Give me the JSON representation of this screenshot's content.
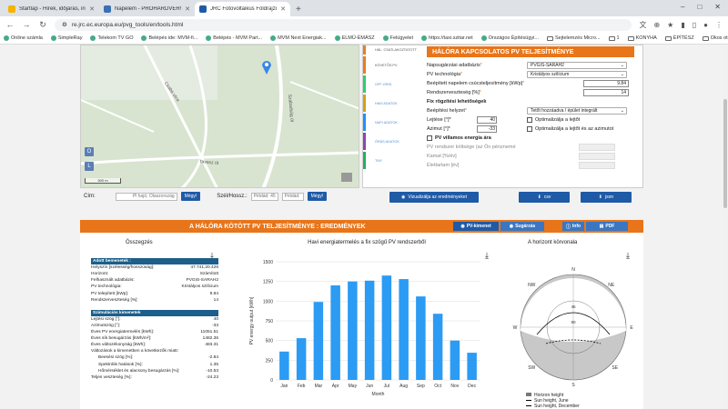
{
  "browser": {
    "tabs": [
      {
        "title": "Startlap - Hírek, időjárás, infor...",
        "color": "#f4b400",
        "active": false
      },
      {
        "title": "Napelem - PROHARDVER! Hozz...",
        "color": "#3b6fb6",
        "active": false
      },
      {
        "title": "JRC Fotovoltaikus Földrajzi Infor...",
        "color": "#1f5aa6",
        "active": true
      }
    ],
    "url": "re.jrc.ec.europa.eu/pvg_tools/en/tools.html",
    "bookmarks": [
      "Online számla",
      "SimpleRay",
      "Telekom TV GO",
      "Belépés ide: MVM-fi...",
      "Belépés - MVM Part...",
      "MVM Next Energiak...",
      "ELMŰ-ÉMÁSZ",
      "Felügyelet",
      "https://taxi.szitar.net",
      "Országos Építésügyi...",
      "Sejtelemzés Micro...",
      "1",
      "KONYHA",
      "ÉPÍTÉSZ",
      "Okos otthon"
    ]
  },
  "map": {
    "street_labels": [
      "Csaba utca",
      "Szabadság út",
      "Tó köz",
      "Tavasz út"
    ],
    "scale": "500 m",
    "leaflet": "LHC",
    "btn_o": "O",
    "btn_l": "L",
    "cim_label": "Cím:",
    "cim_placeholder": "Pl hajó, Ölaszország",
    "go": "Mégy!",
    "szel_label": "Szél/Hossz.:",
    "lat_placeholder": "Példád: 45",
    "lon_placeholder": "Példád: 8",
    "go2": "Mégy!"
  },
  "sidetabs": [
    "HÁL. CSATLAKOZTATOTT",
    "KÖVETŐS PV",
    "OFF-GRID",
    "HAVI ADATOK",
    "NAPI ADATOK",
    "ÓRÁS ADATOK",
    "TMY"
  ],
  "form": {
    "title": "HÁLÓRA KAPCSOLATOS PV TELJESÍTMÉNYE",
    "db_label": "Napsugárzási adatbázis",
    "db_value": "PVGIS-SARAH2",
    "tech_label": "PV technológia",
    "tech_value": "Kristályos szilícium",
    "peak_label": "Beépített napelem csúcsteljesítmény [kWp]",
    "peak_value": "9.84",
    "loss_label": "Rendszerveszteség [%]",
    "loss_value": "14",
    "fixed_title": "Fix rögzítési lehetőségek",
    "mount_label": "Beépítési helyzet",
    "mount_value": "Tetőt hozzáadva / épület integrált",
    "slope_label": "Lejtése [°]",
    "slope_value": "40",
    "opt_slope": "Optimalizálja a lejtőt",
    "azimuth_label": "Azimut [°]",
    "azimuth_value": "-33",
    "opt_both": "Optimalizálja a lejtőt és az azimutot",
    "price_label": "PV villamos energia ára",
    "cost_label": "PV rendszer költsége (az Ön pénznemé",
    "interest_label": "Kamat [%/év]",
    "life_label": "Élettartam [év]",
    "visualize": "Vizualizálja az eredményeket",
    "csv": "csv",
    "json": "json"
  },
  "results": {
    "title": "A HÁLÓRA KÖTÖTT PV TELJESÍTMÉNYE : EREDMÉNYEK",
    "btn_pv": "PV-kimenet",
    "btn_sun": "Sugárzás",
    "btn_info": "Info",
    "btn_pdf": "PDF",
    "summary_title": "Összegzés",
    "monthly_title": "Havi energiatermelés a fix szögű PV rendszerből",
    "horizon_title": "A horizont körvonala",
    "summary_rows": [
      {
        "k": "Adott bemenetek :",
        "v": "",
        "t": "hd"
      },
      {
        "k": "Helyszín [szélesség/hosszúság]:",
        "v": "47.741,20.426",
        "t": ""
      },
      {
        "k": "Horizont:",
        "v": "Számított",
        "t": ""
      },
      {
        "k": "Felhasznált adatbázis:",
        "v": "PVGIS-SARAH2",
        "t": ""
      },
      {
        "k": "PV technológia:",
        "v": "Kristályos szilícium",
        "t": ""
      },
      {
        "k": "PV telepített [kWp]:",
        "v": "9.84",
        "t": ""
      },
      {
        "k": "Rendszerveszteség [%]:",
        "v": "14",
        "t": ""
      },
      {
        "k": "",
        "v": "",
        "t": ""
      },
      {
        "k": "Szimulációs kimenetek",
        "v": "",
        "t": "hd"
      },
      {
        "k": "Lejtési szög [°]:",
        "v": "40",
        "t": ""
      },
      {
        "k": "Azimutszög [°]:",
        "v": "-33",
        "t": ""
      },
      {
        "k": "Éves PV energiatermelés [kWh]:",
        "v": "11051.51",
        "t": ""
      },
      {
        "k": "Éves sík besugárzás [kWh/m²]:",
        "v": "1482.36",
        "t": ""
      },
      {
        "k": "Éves változékonyság [kWh]:",
        "v": "483.31",
        "t": ""
      },
      {
        "k": "Változások a kimenetben a következők miatt:",
        "v": "",
        "t": ""
      },
      {
        "k": "Beesési szög [%]:",
        "v": "-2.84",
        "t": "ind"
      },
      {
        "k": "Spektrális hatások [%]:",
        "v": "1.35",
        "t": "ind"
      },
      {
        "k": "Hőmérséklet és alacsony besugárzás [%]:",
        "v": "-10.53",
        "t": "ind"
      },
      {
        "k": "Teljes veszteség [%]:",
        "v": "-24.23",
        "t": ""
      }
    ],
    "horizon_labels": [
      "N",
      "NE",
      "E",
      "SE",
      "S",
      "SW",
      "W",
      "NW"
    ],
    "horizon_ticks": [
      "45",
      "90"
    ],
    "horizon_legend": [
      "Horizon height",
      "Sun height, June",
      "Sun height, December"
    ]
  },
  "chart_data": {
    "type": "bar",
    "title": "Havi energiatermelés a fix szögű PV rendszerből",
    "xlabel": "Month",
    "ylabel": "PV energy output [kWh]",
    "categories": [
      "Jan",
      "Feb",
      "Mar",
      "Apr",
      "May",
      "Jun",
      "Jul",
      "Aug",
      "Sep",
      "Oct",
      "Nov",
      "Dec"
    ],
    "values": [
      360,
      530,
      990,
      1200,
      1250,
      1260,
      1325,
      1280,
      1060,
      840,
      500,
      345
    ],
    "ylim": [
      0,
      1500
    ],
    "yticks": [
      0,
      250,
      500,
      750,
      1000,
      1250,
      1500
    ],
    "color": "#2b9bf4"
  }
}
